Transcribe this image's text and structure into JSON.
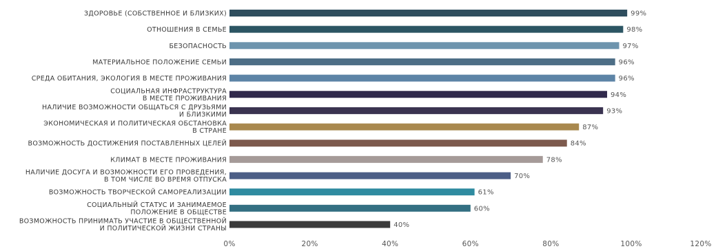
{
  "chart_data": {
    "type": "bar",
    "orientation": "horizontal",
    "title": "",
    "xlabel": "",
    "ylabel": "",
    "xlim": [
      0,
      120
    ],
    "x_ticks": [
      "0%",
      "20%",
      "40%",
      "60%",
      "80%",
      "100%",
      "120%"
    ],
    "grid": false,
    "legend": "none",
    "categories": [
      [
        "ЗДОРОВЬЕ (СОБСТВЕННОЕ И БЛИЗКИХ)"
      ],
      [
        "ОТНОШЕНИЯ В СЕМЬЕ"
      ],
      [
        "БЕЗОПАСНОСТЬ"
      ],
      [
        "МАТЕРИАЛЬНОЕ ПОЛОЖЕНИЕ СЕМЬИ"
      ],
      [
        "СРЕДА ОБИТАНИЯ, ЭКОЛОГИЯ В МЕСТЕ ПРОЖИВАНИЯ"
      ],
      [
        "СОЦИАЛЬНАЯ ИНФРАСТРУКТУРА",
        "В МЕСТЕ ПРОЖИВАНИЯ"
      ],
      [
        "НАЛИЧИЕ ВОЗМОЖНОСТИ ОБЩАТЬСЯ С ДРУЗЬЯМИ",
        "И БЛИЗКИМИ"
      ],
      [
        "ЭКОНОМИЧЕСКАЯ И ПОЛИТИЧЕСКАЯ ОБСТАНОВКА",
        "В СТРАНЕ"
      ],
      [
        "ВОЗМОЖНОСТЬ ДОСТИЖЕНИЯ ПОСТАВЛЕННЫХ ЦЕЛЕЙ"
      ],
      [
        "КЛИМАТ В МЕСТЕ ПРОЖИВАНИЯ"
      ],
      [
        "НАЛИЧИЕ ДОСУГА И ВОЗМОЖНОСТИ ЕГО ПРОВЕДЕНИЯ,",
        "В ТОМ ЧИСЛЕ ВО ВРЕМЯ ОТПУСКА"
      ],
      [
        "ВОЗМОЖНОСТЬ ТВОРЧЕСКОЙ САМОРЕАЛИЗАЦИИ"
      ],
      [
        "СОЦИАЛЬНЫЙ СТАТУС И ЗАНИМАЕМОЕ",
        "ПОЛОЖЕНИЕ В ОБЩЕСТВЕ"
      ],
      [
        "ВОЗМОЖНОСТЬ ПРИНИМАТЬ УЧАСТИЕ В ОБЩЕСТВЕННОЙ",
        "И ПОЛИТИЧЕСКОЙ ЖИЗНИ СТРАНЫ"
      ]
    ],
    "values": [
      99,
      98,
      97,
      96,
      96,
      94,
      93,
      87,
      84,
      78,
      70,
      61,
      60,
      40
    ],
    "value_labels": [
      "99%",
      "98%",
      "97%",
      "96%",
      "96%",
      "94%",
      "93%",
      "87%",
      "84%",
      "78%",
      "70%",
      "61%",
      "60%",
      "40%"
    ],
    "bar_colors": [
      "#2f4e5e",
      "#2c5563",
      "#6d94ad",
      "#4d6e86",
      "#5d84a6",
      "#312a4c",
      "#3a3350",
      "#a8884e",
      "#7d5a4d",
      "#a59a98",
      "#4c5e86",
      "#2f8ba0",
      "#336f82",
      "#3b3b3b"
    ]
  }
}
